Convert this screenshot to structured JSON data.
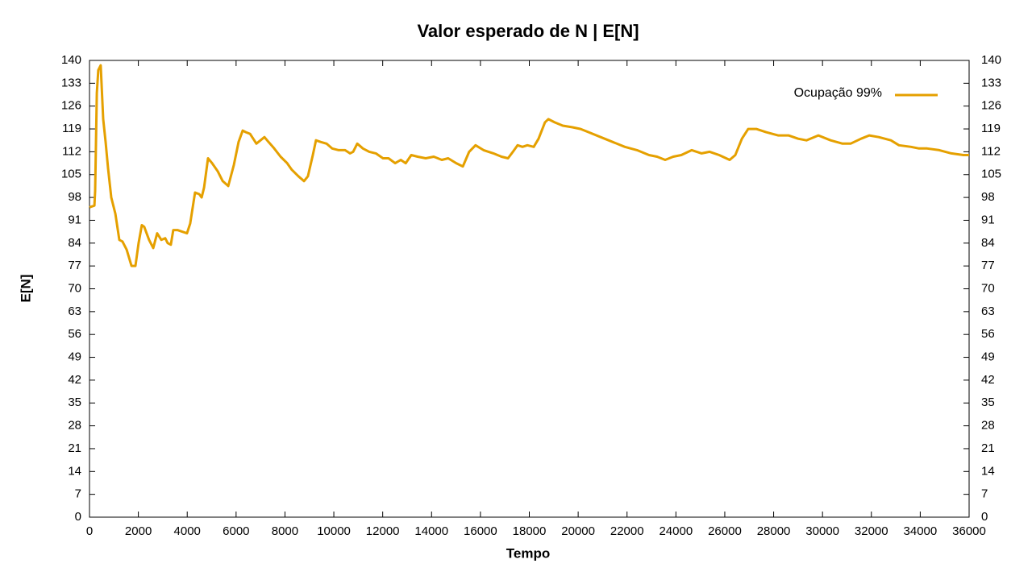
{
  "chart_data": {
    "type": "line",
    "title": "Valor esperado de N | E[N]",
    "xlabel": "Tempo",
    "ylabel": "E[N]",
    "legend": "top right",
    "x": [
      0,
      200,
      230,
      300,
      360,
      460,
      560,
      660,
      760,
      890,
      1060,
      1220,
      1350,
      1520,
      1720,
      1880,
      2010,
      2140,
      2240,
      2440,
      2610,
      2770,
      2940,
      3100,
      3200,
      3330,
      3430,
      3600,
      3790,
      3990,
      4120,
      4320,
      4490,
      4590,
      4690,
      4850,
      5020,
      5250,
      5450,
      5680,
      5910,
      6100,
      6270,
      6400,
      6570,
      6830,
      7000,
      7160,
      7330,
      7560,
      7820,
      8090,
      8280,
      8550,
      8780,
      8940,
      9140,
      9270,
      9470,
      9700,
      9930,
      10200,
      10460,
      10660,
      10790,
      10960,
      11190,
      11450,
      11720,
      12010,
      12240,
      12510,
      12740,
      12940,
      13170,
      13430,
      13760,
      14090,
      14420,
      14680,
      15010,
      15280,
      15540,
      15800,
      16130,
      16530,
      16860,
      17130,
      17330,
      17520,
      17720,
      17920,
      18180,
      18380,
      18640,
      18780,
      19040,
      19370,
      19770,
      20100,
      20430,
      20920,
      21420,
      21910,
      22410,
      22900,
      23230,
      23560,
      23890,
      24220,
      24650,
      25050,
      25380,
      25770,
      26200,
      26430,
      26700,
      26960,
      27290,
      27690,
      28180,
      28610,
      29000,
      29340,
      29830,
      30330,
      30820,
      31150,
      31580,
      31910,
      32300,
      32800,
      33130,
      33620,
      33950,
      34280,
      34780,
      35270,
      35770,
      36000
    ],
    "series": [
      {
        "name": "Ocupação 99%",
        "color": "#e5a000",
        "values": [
          95,
          95.5,
          100,
          130,
          137,
          138.5,
          122,
          115,
          107,
          98,
          93,
          85,
          84.5,
          82,
          77,
          77,
          84,
          89.5,
          89,
          85,
          82.5,
          87,
          85,
          85.5,
          84,
          83.5,
          88,
          88,
          87.5,
          87,
          90,
          99.5,
          99,
          98,
          101,
          110,
          108.5,
          106,
          103,
          101.5,
          108,
          115,
          118.5,
          118,
          117.5,
          114.5,
          115.5,
          116.5,
          115,
          113,
          110.5,
          108.5,
          106.5,
          104.5,
          103,
          104.5,
          111,
          115.5,
          115,
          114.5,
          113,
          112.5,
          112.5,
          111.5,
          112,
          114.5,
          113,
          112,
          111.5,
          110,
          110,
          108.5,
          109.5,
          108.5,
          111,
          110.5,
          110,
          110.5,
          109.5,
          110,
          108.5,
          107.5,
          112,
          114,
          112.5,
          111.5,
          110.5,
          110,
          112,
          114,
          113.5,
          114,
          113.5,
          116,
          121,
          122,
          121,
          120,
          119.5,
          119,
          118,
          116.5,
          115,
          113.5,
          112.5,
          111,
          110.5,
          109.5,
          110.5,
          111,
          112.5,
          111.5,
          112,
          111,
          109.5,
          111,
          116,
          119,
          119,
          118,
          117,
          117,
          116,
          115.5,
          117,
          115.5,
          114.5,
          114.5,
          116,
          117,
          116.5,
          115.5,
          114,
          113.5,
          113,
          113,
          112.5,
          111.5,
          111,
          111
        ]
      }
    ],
    "xlim": [
      0,
      36000
    ],
    "xticks": [
      0,
      2000,
      4000,
      6000,
      8000,
      10000,
      12000,
      14000,
      16000,
      18000,
      20000,
      22000,
      24000,
      26000,
      28000,
      30000,
      32000,
      34000,
      36000
    ],
    "ylim": [
      0,
      140
    ],
    "yticks": [
      0,
      7,
      14,
      21,
      28,
      35,
      42,
      49,
      56,
      63,
      70,
      77,
      84,
      91,
      98,
      105,
      112,
      119,
      126,
      133,
      140
    ],
    "y2lim": [
      0,
      140
    ],
    "y2ticks": [
      0,
      7,
      14,
      21,
      28,
      35,
      42,
      49,
      56,
      63,
      70,
      77,
      84,
      91,
      98,
      105,
      112,
      119,
      126,
      133,
      140
    ]
  }
}
